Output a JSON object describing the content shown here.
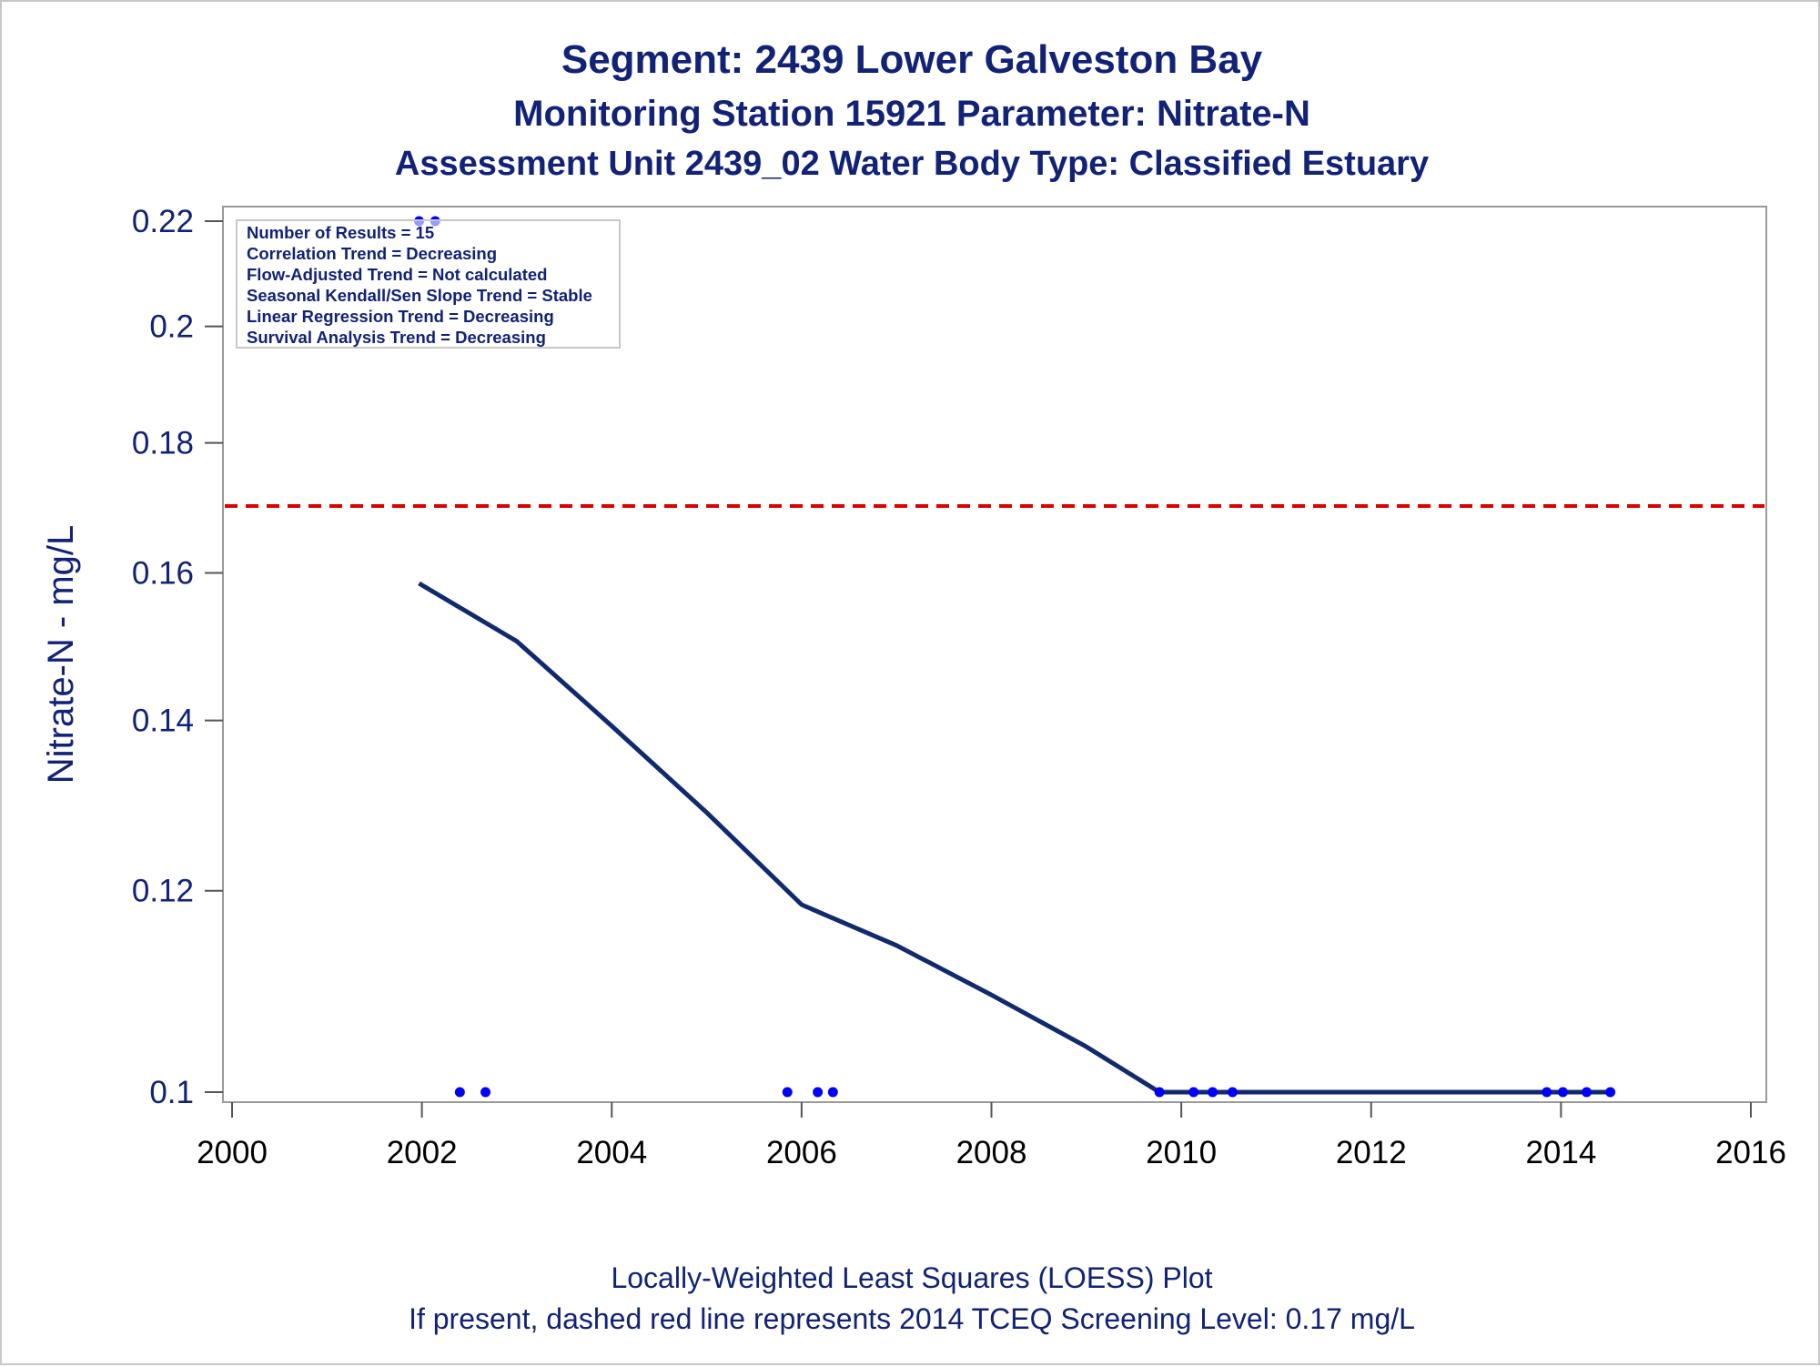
{
  "titles": {
    "line1": "Segment: 2439  Lower Galveston Bay",
    "line2": "Monitoring Station 15921 Parameter: Nitrate-N",
    "line3": "Assessment Unit 2439_02   Water Body Type: Classified Estuary"
  },
  "footnotes": {
    "line1": "Locally-Weighted Least Squares (LOESS) Plot",
    "line2": "If present, dashed red line represents 2014 TCEQ Screening Level: 0.17 mg/L"
  },
  "stats_box": [
    "Number of Results = 15",
    "Correlation Trend = Decreasing",
    "Flow-Adjusted Trend = Not calculated",
    "Seasonal Kendall/Sen Slope Trend = Stable",
    "Linear Regression Trend = Decreasing",
    "Survival Analysis Trend = Decreasing"
  ],
  "colors": {
    "text": "#112277",
    "loess_line": "#112a6e",
    "points": "#0000ff",
    "screening_line": "#dd0000"
  },
  "chart_data": {
    "type": "scatter",
    "ylabel": "Nitrate-N - mg/L",
    "y_scale": "log",
    "xlim": [
      2000,
      2016
    ],
    "ylim": [
      0.1,
      0.22
    ],
    "x_ticks": [
      "2000",
      "2002",
      "2004",
      "2006",
      "2008",
      "2010",
      "2012",
      "2014",
      "2016"
    ],
    "y_ticks": [
      "0.1",
      "0.12",
      "0.14",
      "0.16",
      "0.18",
      "0.2",
      "0.22"
    ],
    "grid": false,
    "screening_level": 0.17,
    "series": [
      {
        "kind": "points",
        "x": [
          2001.97,
          2002.14,
          2002.4,
          2002.67,
          2005.85,
          2006.17,
          2006.33,
          2009.77,
          2010.13,
          2010.33,
          2010.54,
          2013.85,
          2014.02,
          2014.27,
          2014.52
        ],
        "y": [
          0.22,
          0.22,
          0.1,
          0.1,
          0.1,
          0.1,
          0.1,
          0.1,
          0.1,
          0.1,
          0.1,
          0.1,
          0.1,
          0.1,
          0.1
        ]
      },
      {
        "kind": "loess",
        "x": [
          2001.97,
          2003.0,
          2004.0,
          2005.0,
          2006.0,
          2006.25,
          2007.0,
          2008.0,
          2009.0,
          2009.77,
          2012.0,
          2014.52
        ],
        "y": [
          0.1585,
          0.1504,
          0.1393,
          0.1288,
          0.1185,
          0.1174,
          0.1142,
          0.1092,
          0.1042,
          0.1,
          0.1,
          0.1
        ]
      }
    ]
  }
}
